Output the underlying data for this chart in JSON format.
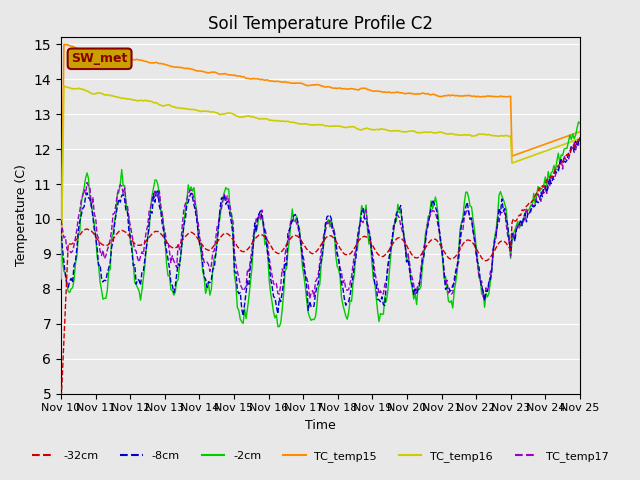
{
  "title": "Soil Temperature Profile C2",
  "xlabel": "Time",
  "ylabel": "Temperature (C)",
  "ylim": [
    5.0,
    15.2
  ],
  "yticks": [
    5.0,
    6.0,
    7.0,
    8.0,
    9.0,
    10.0,
    11.0,
    12.0,
    13.0,
    14.0,
    15.0
  ],
  "bg_color": "#e8e8e8",
  "plot_bg_color": "#e8e8e8",
  "annotation_text": "SW_met",
  "annotation_color": "#8b0000",
  "annotation_bg": "#c8a000",
  "legend_entries": [
    "-32cm",
    "-8cm",
    "-2cm",
    "TC_temp15",
    "TC_temp16",
    "TC_temp17"
  ],
  "legend_colors": [
    "#cc0000",
    "#0000cc",
    "#00cc00",
    "#ff8c00",
    "#cccc00",
    "#9900cc"
  ],
  "legend_linestyles": [
    "--",
    "--",
    "-",
    "-",
    "-",
    "--"
  ],
  "num_days": 15,
  "start_day": 10
}
